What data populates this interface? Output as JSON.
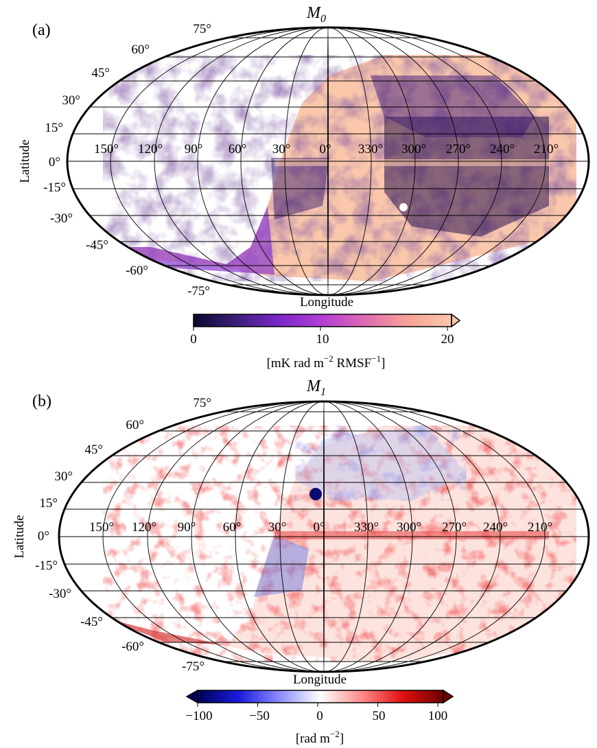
{
  "panels": [
    {
      "key": "a",
      "label": "(a)",
      "title": "M",
      "title_sub": "0",
      "lat_ticks": [
        "75°",
        "60°",
        "45°",
        "30°",
        "15°",
        "0°",
        "-15°",
        "-30°",
        "-45°",
        "-60°",
        "-75°"
      ],
      "lon_ticks": [
        "150°",
        "120°",
        "90°",
        "60°",
        "30°",
        "0°",
        "330°",
        "300°",
        "270°",
        "240°",
        "210°"
      ],
      "ylabel": "Latitude",
      "xlabel": "Longitude",
      "colorbar": {
        "type": "sequential",
        "ticks": [
          "0",
          "10",
          "20"
        ],
        "range": [
          0,
          20
        ],
        "extend": "max",
        "colors": [
          "#0a0a30",
          "#3c1f7a",
          "#7b28c8",
          "#b33fd6",
          "#e06ab0",
          "#f6a497",
          "#fac7ab"
        ],
        "label_main": "[mK rad m",
        "label_sup1": "−2",
        "label_mid": " RMSF",
        "label_sup2": "−1",
        "label_end": "]"
      }
    },
    {
      "key": "b",
      "label": "(b)",
      "title": "M",
      "title_sub": "1",
      "lat_ticks": [
        "75°",
        "60°",
        "45°",
        "30°",
        "15°",
        "0°",
        "-15°",
        "-30°",
        "-45°",
        "-60°",
        "-75°"
      ],
      "lon_ticks": [
        "150°",
        "120°",
        "90°",
        "60°",
        "30°",
        "0°",
        "330°",
        "300°",
        "270°",
        "240°",
        "210°"
      ],
      "ylabel": "Latitude",
      "xlabel": "Longitude",
      "colorbar": {
        "type": "diverging",
        "ticks": [
          "−100",
          "−50",
          "0",
          "50",
          "100"
        ],
        "range": [
          -100,
          100
        ],
        "extend": "both",
        "colors": [
          "#00005a",
          "#1a1adc",
          "#8c8cff",
          "#ffffff",
          "#ff8c8c",
          "#e01010",
          "#6e0000"
        ],
        "label_main": "[rad m",
        "label_sup1": "−2",
        "label_mid": "",
        "label_sup2": "",
        "label_end": "]"
      }
    }
  ]
}
